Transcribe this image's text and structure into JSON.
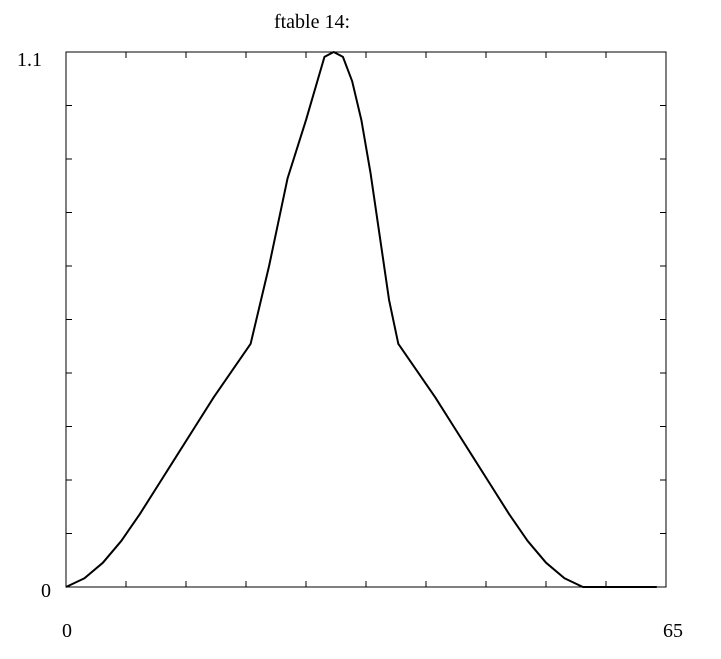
{
  "chart_data": {
    "type": "line",
    "title": "ftable 14:",
    "xlabel": "",
    "ylabel": "",
    "xlim": [
      0,
      65
    ],
    "ylim": [
      0,
      1.1
    ],
    "x_tick_labels": [
      "0",
      "65"
    ],
    "y_tick_labels": [
      "0",
      "1.1"
    ],
    "grid": false,
    "colors": {
      "line": "#000000",
      "axes": "#000000",
      "background": "#ffffff"
    },
    "series": [
      {
        "x": [
          0,
          2,
          4,
          6,
          8,
          10,
          12,
          14,
          16,
          18,
          20,
          22,
          24,
          26,
          28,
          29,
          30,
          31,
          32,
          33,
          34,
          35,
          36,
          38,
          40,
          42,
          44,
          46,
          48,
          50,
          52,
          54,
          56,
          58,
          60,
          62,
          64
        ],
        "y": [
          0.0,
          0.018,
          0.05,
          0.095,
          0.15,
          0.21,
          0.27,
          0.33,
          0.39,
          0.445,
          0.5,
          0.66,
          0.84,
          0.96,
          1.09,
          1.1,
          1.09,
          1.04,
          0.96,
          0.85,
          0.72,
          0.59,
          0.5,
          0.445,
          0.39,
          0.33,
          0.27,
          0.21,
          0.15,
          0.095,
          0.05,
          0.018,
          0.0,
          0.0,
          0.0,
          0.0,
          0.0
        ]
      }
    ]
  }
}
